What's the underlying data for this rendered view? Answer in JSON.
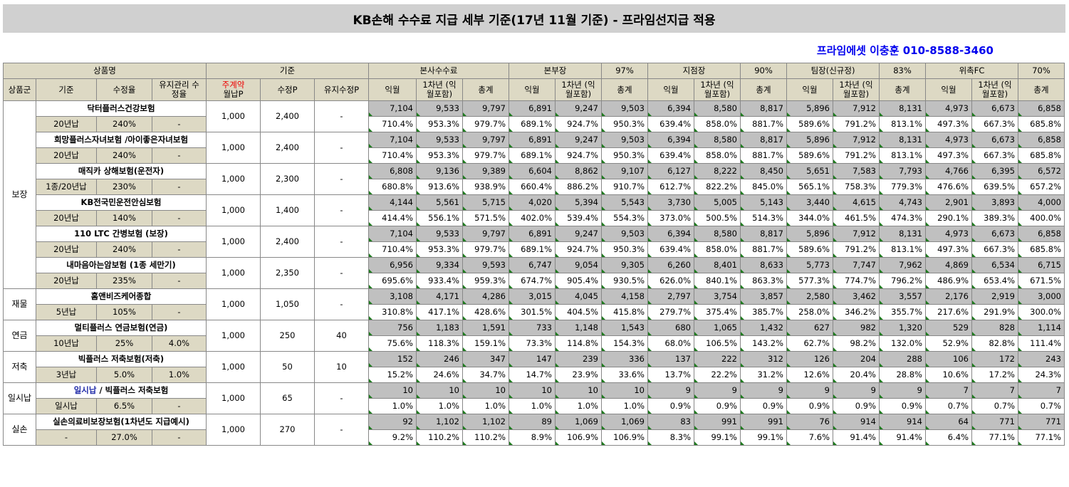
{
  "title": "KB손해 수수료 지급 세부 기준(17년 11월 기준) - 프라임선지급 적용",
  "contact": "프라임에셋 이충훈 010-8588-3460",
  "header1": {
    "product": "상품명",
    "base": "기준",
    "hq": "본사수수료",
    "bb": "본부장",
    "bb_pct": "97%",
    "jj": "지점장",
    "jj_pct": "90%",
    "tj": "팀장(신규정)",
    "tj_pct": "83%",
    "fc": "위촉FC",
    "fc_pct": "70%"
  },
  "header2": {
    "group": "상품군",
    "basis": "기준",
    "rate": "수정율",
    "maint_rate": "유지관리 수정율",
    "main_contract": "주계약",
    "monthly": "월납P",
    "fixp": "수정P",
    "maintp": "유지수정P",
    "next_month": "익월",
    "first_year": "1차년 (익월포함)",
    "total": "총계"
  },
  "groups": [
    {
      "name": "보장",
      "rows": 6
    },
    {
      "name": "재물",
      "rows": 1
    },
    {
      "name": "연금",
      "rows": 1
    },
    {
      "name": "저축",
      "rows": 1
    },
    {
      "name": "일시납",
      "rows": 1
    },
    {
      "name": "실손",
      "rows": 1
    }
  ],
  "products": [
    {
      "name": "닥터플러스건강보험",
      "basis": "20년납",
      "rate": "240%",
      "maint": "-",
      "monthly": "1,000",
      "fixp": "2,400",
      "maintp": "-",
      "values": [
        "7,104",
        "9,533",
        "9,797",
        "6,891",
        "9,247",
        "9,503",
        "6,394",
        "8,580",
        "8,817",
        "5,896",
        "7,912",
        "8,131",
        "4,973",
        "6,673",
        "6,858"
      ],
      "pcts": [
        "710.4%",
        "953.3%",
        "979.7%",
        "689.1%",
        "924.7%",
        "950.3%",
        "639.4%",
        "858.0%",
        "881.7%",
        "589.6%",
        "791.2%",
        "813.1%",
        "497.3%",
        "667.3%",
        "685.8%"
      ]
    },
    {
      "name": "희망플러스자녀보험 /아이좋은자녀보험",
      "basis": "20년납",
      "rate": "240%",
      "maint": "-",
      "monthly": "1,000",
      "fixp": "2,400",
      "maintp": "-",
      "values": [
        "7,104",
        "9,533",
        "9,797",
        "6,891",
        "9,247",
        "9,503",
        "6,394",
        "8,580",
        "8,817",
        "5,896",
        "7,912",
        "8,131",
        "4,973",
        "6,673",
        "6,858"
      ],
      "pcts": [
        "710.4%",
        "953.3%",
        "979.7%",
        "689.1%",
        "924.7%",
        "950.3%",
        "639.4%",
        "858.0%",
        "881.7%",
        "589.6%",
        "791.2%",
        "813.1%",
        "497.3%",
        "667.3%",
        "685.8%"
      ]
    },
    {
      "name": "매직카 상해보험(운전자)",
      "basis": "1종/20년납",
      "rate": "230%",
      "maint": "-",
      "monthly": "1,000",
      "fixp": "2,300",
      "maintp": "-",
      "values": [
        "6,808",
        "9,136",
        "9,389",
        "6,604",
        "8,862",
        "9,107",
        "6,127",
        "8,222",
        "8,450",
        "5,651",
        "7,583",
        "7,793",
        "4,766",
        "6,395",
        "6,572"
      ],
      "pcts": [
        "680.8%",
        "913.6%",
        "938.9%",
        "660.4%",
        "886.2%",
        "910.7%",
        "612.7%",
        "822.2%",
        "845.0%",
        "565.1%",
        "758.3%",
        "779.3%",
        "476.6%",
        "639.5%",
        "657.2%"
      ]
    },
    {
      "name": "KB전국민운전안심보험",
      "basis": "20년납",
      "rate": "140%",
      "maint": "-",
      "monthly": "1,000",
      "fixp": "1,400",
      "maintp": "-",
      "values": [
        "4,144",
        "5,561",
        "5,715",
        "4,020",
        "5,394",
        "5,543",
        "3,730",
        "5,005",
        "5,143",
        "3,440",
        "4,615",
        "4,743",
        "2,901",
        "3,893",
        "4,000"
      ],
      "pcts": [
        "414.4%",
        "556.1%",
        "571.5%",
        "402.0%",
        "539.4%",
        "554.3%",
        "373.0%",
        "500.5%",
        "514.3%",
        "344.0%",
        "461.5%",
        "474.3%",
        "290.1%",
        "389.3%",
        "400.0%"
      ]
    },
    {
      "name": "110 LTC 간병보험 (보장)",
      "basis": "20년납",
      "rate": "240%",
      "maint": "-",
      "monthly": "1,000",
      "fixp": "2,400",
      "maintp": "-",
      "values": [
        "7,104",
        "9,533",
        "9,797",
        "6,891",
        "9,247",
        "9,503",
        "6,394",
        "8,580",
        "8,817",
        "5,896",
        "7,912",
        "8,131",
        "4,973",
        "6,673",
        "6,858"
      ],
      "pcts": [
        "710.4%",
        "953.3%",
        "979.7%",
        "689.1%",
        "924.7%",
        "950.3%",
        "639.4%",
        "858.0%",
        "881.7%",
        "589.6%",
        "791.2%",
        "813.1%",
        "497.3%",
        "667.3%",
        "685.8%"
      ]
    },
    {
      "name": "내마음아는암보험 (1종 세만기)",
      "basis": "20년납",
      "rate": "235%",
      "maint": "-",
      "monthly": "1,000",
      "fixp": "2,350",
      "maintp": "-",
      "values": [
        "6,956",
        "9,334",
        "9,593",
        "6,747",
        "9,054",
        "9,305",
        "6,260",
        "8,401",
        "8,633",
        "5,773",
        "7,747",
        "7,962",
        "4,869",
        "6,534",
        "6,715"
      ],
      "pcts": [
        "695.6%",
        "933.4%",
        "959.3%",
        "674.7%",
        "905.4%",
        "930.5%",
        "626.0%",
        "840.1%",
        "863.3%",
        "577.3%",
        "774.7%",
        "796.2%",
        "486.9%",
        "653.4%",
        "671.5%"
      ]
    },
    {
      "name": "홈앤비즈케어종합",
      "basis": "5년납",
      "rate": "105%",
      "maint": "-",
      "monthly": "1,000",
      "fixp": "1,050",
      "maintp": "-",
      "values": [
        "3,108",
        "4,171",
        "4,286",
        "3,015",
        "4,045",
        "4,158",
        "2,797",
        "3,754",
        "3,857",
        "2,580",
        "3,462",
        "3,557",
        "2,176",
        "2,919",
        "3,000"
      ],
      "pcts": [
        "310.8%",
        "417.1%",
        "428.6%",
        "301.5%",
        "404.5%",
        "415.8%",
        "279.7%",
        "375.4%",
        "385.7%",
        "258.0%",
        "346.2%",
        "355.7%",
        "217.6%",
        "291.9%",
        "300.0%"
      ]
    },
    {
      "name": "멀티플러스 연금보험(연금)",
      "basis": "10년납",
      "rate": "25%",
      "maint": "4.0%",
      "monthly": "1,000",
      "fixp": "250",
      "maintp": "40",
      "values": [
        "756",
        "1,183",
        "1,591",
        "733",
        "1,148",
        "1,543",
        "680",
        "1,065",
        "1,432",
        "627",
        "982",
        "1,320",
        "529",
        "828",
        "1,114"
      ],
      "pcts": [
        "75.6%",
        "118.3%",
        "159.1%",
        "73.3%",
        "114.8%",
        "154.3%",
        "68.0%",
        "106.5%",
        "143.2%",
        "62.7%",
        "98.2%",
        "132.0%",
        "52.9%",
        "82.8%",
        "111.4%"
      ]
    },
    {
      "name": "빅플러스 저축보험(저축)",
      "basis": "3년납",
      "rate": "5.0%",
      "maint": "1.0%",
      "monthly": "1,000",
      "fixp": "50",
      "maintp": "10",
      "values": [
        "152",
        "246",
        "347",
        "147",
        "239",
        "336",
        "137",
        "222",
        "312",
        "126",
        "204",
        "288",
        "106",
        "172",
        "243"
      ],
      "pcts": [
        "15.2%",
        "24.6%",
        "34.7%",
        "14.7%",
        "23.9%",
        "33.6%",
        "13.7%",
        "22.2%",
        "31.2%",
        "12.6%",
        "20.4%",
        "28.8%",
        "10.6%",
        "17.2%",
        "24.3%"
      ]
    },
    {
      "name_blue": "일시납",
      "name": " / 빅플러스 저축보험",
      "basis": "일시납",
      "rate": "6.5%",
      "maint": "-",
      "monthly": "1,000",
      "fixp": "65",
      "maintp": "-",
      "values": [
        "10",
        "10",
        "10",
        "10",
        "10",
        "10",
        "9",
        "9",
        "9",
        "9",
        "9",
        "9",
        "7",
        "7",
        "7"
      ],
      "pcts": [
        "1.0%",
        "1.0%",
        "1.0%",
        "1.0%",
        "1.0%",
        "1.0%",
        "0.9%",
        "0.9%",
        "0.9%",
        "0.9%",
        "0.9%",
        "0.9%",
        "0.7%",
        "0.7%",
        "0.7%"
      ]
    },
    {
      "name": "실손의료비보장보험(1차년도 지급예시)",
      "basis": "-",
      "rate": "27.0%",
      "maint": "-",
      "monthly": "1,000",
      "fixp": "270",
      "maintp": "-",
      "values": [
        "92",
        "1,102",
        "1,102",
        "89",
        "1,069",
        "1,069",
        "83",
        "991",
        "991",
        "76",
        "914",
        "914",
        "64",
        "771",
        "771"
      ],
      "pcts": [
        "9.2%",
        "110.2%",
        "110.2%",
        "8.9%",
        "106.9%",
        "106.9%",
        "8.3%",
        "99.1%",
        "99.1%",
        "7.6%",
        "91.4%",
        "91.4%",
        "6.4%",
        "77.1%",
        "77.1%"
      ]
    }
  ]
}
